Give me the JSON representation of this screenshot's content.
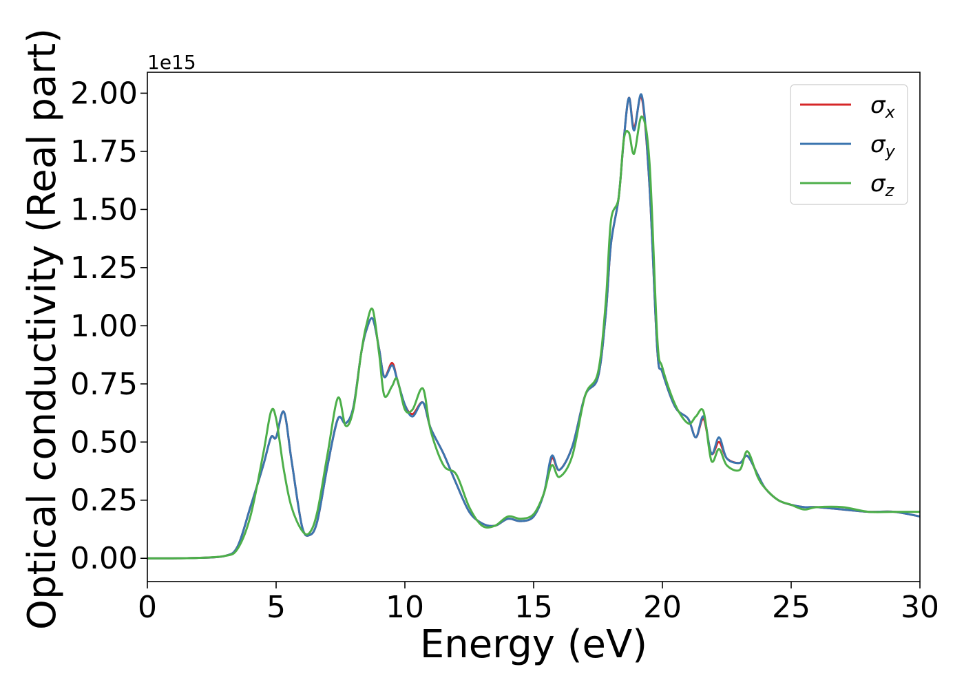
{
  "chart_data": {
    "type": "line",
    "xlabel": "Energy (eV)",
    "ylabel": "Optical conductivity (Real part)",
    "y_offset_label": "1e15",
    "xlim": [
      0,
      30
    ],
    "ylim": [
      -0.1,
      2.09
    ],
    "x_ticks": [
      0,
      5,
      10,
      15,
      20,
      25,
      30
    ],
    "x_tick_labels": [
      "0",
      "5",
      "10",
      "15",
      "20",
      "25",
      "30"
    ],
    "y_ticks": [
      0.0,
      0.25,
      0.5,
      0.75,
      1.0,
      1.25,
      1.5,
      1.75,
      2.0
    ],
    "y_tick_labels": [
      "0.00",
      "0.25",
      "0.50",
      "0.75",
      "1.00",
      "1.25",
      "1.50",
      "1.75",
      "2.00"
    ],
    "grid": false,
    "legend_position": "top-right",
    "series": [
      {
        "name": "σx",
        "symbol": "σ",
        "subscript": "x",
        "color": "#d62728",
        "x": [
          0,
          1,
          2,
          3,
          3.5,
          4,
          4.5,
          4.8,
          5.0,
          5.3,
          5.6,
          6.0,
          6.3,
          6.6,
          7.0,
          7.4,
          7.7,
          8.0,
          8.3,
          8.5,
          8.75,
          9.0,
          9.2,
          9.5,
          9.7,
          10.0,
          10.3,
          10.7,
          11.0,
          11.5,
          12.0,
          12.5,
          13.0,
          13.5,
          14.0,
          14.5,
          15.0,
          15.4,
          15.7,
          16.0,
          16.5,
          17.0,
          17.5,
          17.8,
          18.0,
          18.3,
          18.5,
          18.7,
          18.9,
          19.2,
          19.5,
          19.8,
          20.0,
          20.5,
          21.0,
          21.3,
          21.6,
          21.9,
          22.2,
          22.5,
          23.0,
          23.3,
          23.7,
          24.0,
          24.5,
          25.0,
          25.5,
          26.0,
          27.0,
          28.0,
          29.0,
          30.0
        ],
        "y": [
          0.0,
          0.0,
          0.002,
          0.01,
          0.05,
          0.22,
          0.4,
          0.52,
          0.52,
          0.63,
          0.42,
          0.14,
          0.1,
          0.16,
          0.4,
          0.6,
          0.58,
          0.65,
          0.88,
          0.98,
          1.03,
          0.9,
          0.78,
          0.84,
          0.77,
          0.66,
          0.62,
          0.67,
          0.56,
          0.45,
          0.32,
          0.2,
          0.15,
          0.14,
          0.17,
          0.16,
          0.18,
          0.28,
          0.43,
          0.38,
          0.48,
          0.7,
          0.78,
          1.05,
          1.35,
          1.55,
          1.8,
          1.98,
          1.85,
          1.98,
          1.6,
          0.9,
          0.8,
          0.65,
          0.6,
          0.52,
          0.6,
          0.45,
          0.5,
          0.43,
          0.41,
          0.44,
          0.36,
          0.3,
          0.25,
          0.23,
          0.22,
          0.22,
          0.21,
          0.2,
          0.2,
          0.18
        ]
      },
      {
        "name": "σy",
        "symbol": "σ",
        "subscript": "y",
        "color": "#3b75af",
        "x": [
          0,
          1,
          2,
          3,
          3.5,
          4,
          4.5,
          4.8,
          5.0,
          5.3,
          5.6,
          6.0,
          6.3,
          6.6,
          7.0,
          7.4,
          7.7,
          8.0,
          8.3,
          8.5,
          8.75,
          9.0,
          9.2,
          9.5,
          9.7,
          10.0,
          10.3,
          10.7,
          11.0,
          11.5,
          12.0,
          12.5,
          13.0,
          13.5,
          14.0,
          14.5,
          15.0,
          15.4,
          15.7,
          16.0,
          16.5,
          17.0,
          17.5,
          17.8,
          18.0,
          18.3,
          18.5,
          18.7,
          18.9,
          19.2,
          19.5,
          19.8,
          20.0,
          20.5,
          21.0,
          21.3,
          21.6,
          21.9,
          22.2,
          22.5,
          23.0,
          23.3,
          23.7,
          24.0,
          24.5,
          25.0,
          25.5,
          26.0,
          27.0,
          28.0,
          29.0,
          30.0
        ],
        "y": [
          0.0,
          0.0,
          0.002,
          0.01,
          0.05,
          0.22,
          0.4,
          0.52,
          0.52,
          0.63,
          0.42,
          0.14,
          0.1,
          0.16,
          0.4,
          0.6,
          0.58,
          0.65,
          0.88,
          0.98,
          1.03,
          0.9,
          0.78,
          0.83,
          0.77,
          0.66,
          0.61,
          0.67,
          0.56,
          0.45,
          0.32,
          0.2,
          0.15,
          0.14,
          0.17,
          0.16,
          0.18,
          0.28,
          0.44,
          0.38,
          0.48,
          0.7,
          0.78,
          1.05,
          1.35,
          1.55,
          1.8,
          1.98,
          1.84,
          1.99,
          1.6,
          0.9,
          0.8,
          0.65,
          0.6,
          0.52,
          0.61,
          0.45,
          0.52,
          0.43,
          0.41,
          0.44,
          0.36,
          0.3,
          0.25,
          0.23,
          0.22,
          0.22,
          0.21,
          0.2,
          0.2,
          0.18
        ]
      },
      {
        "name": "σz",
        "symbol": "σ",
        "subscript": "z",
        "color": "#4daf4a",
        "x": [
          0,
          1,
          2,
          3,
          3.5,
          4,
          4.5,
          4.8,
          5.0,
          5.3,
          5.6,
          6.0,
          6.3,
          6.6,
          7.0,
          7.4,
          7.7,
          8.0,
          8.3,
          8.5,
          8.75,
          9.0,
          9.2,
          9.5,
          9.7,
          10.0,
          10.3,
          10.7,
          11.0,
          11.5,
          12.0,
          12.5,
          13.0,
          13.5,
          14.0,
          14.5,
          15.0,
          15.4,
          15.7,
          16.0,
          16.5,
          17.0,
          17.5,
          17.8,
          18.0,
          18.3,
          18.5,
          18.7,
          18.9,
          19.2,
          19.5,
          19.8,
          20.0,
          20.5,
          21.0,
          21.3,
          21.6,
          21.9,
          22.2,
          22.5,
          23.0,
          23.3,
          23.7,
          24.0,
          24.5,
          25.0,
          25.5,
          26.0,
          27.0,
          28.0,
          29.0,
          30.0
        ],
        "y": [
          0.0,
          0.0,
          0.002,
          0.01,
          0.04,
          0.18,
          0.45,
          0.63,
          0.6,
          0.38,
          0.22,
          0.12,
          0.11,
          0.2,
          0.45,
          0.69,
          0.57,
          0.64,
          0.88,
          1.0,
          1.07,
          0.88,
          0.7,
          0.74,
          0.77,
          0.64,
          0.64,
          0.73,
          0.55,
          0.4,
          0.36,
          0.22,
          0.14,
          0.14,
          0.18,
          0.17,
          0.19,
          0.28,
          0.4,
          0.35,
          0.44,
          0.7,
          0.8,
          1.1,
          1.45,
          1.55,
          1.8,
          1.83,
          1.74,
          1.9,
          1.7,
          0.95,
          0.82,
          0.66,
          0.58,
          0.61,
          0.63,
          0.42,
          0.47,
          0.4,
          0.38,
          0.46,
          0.35,
          0.3,
          0.25,
          0.23,
          0.21,
          0.22,
          0.22,
          0.2,
          0.2,
          0.2
        ]
      }
    ]
  }
}
